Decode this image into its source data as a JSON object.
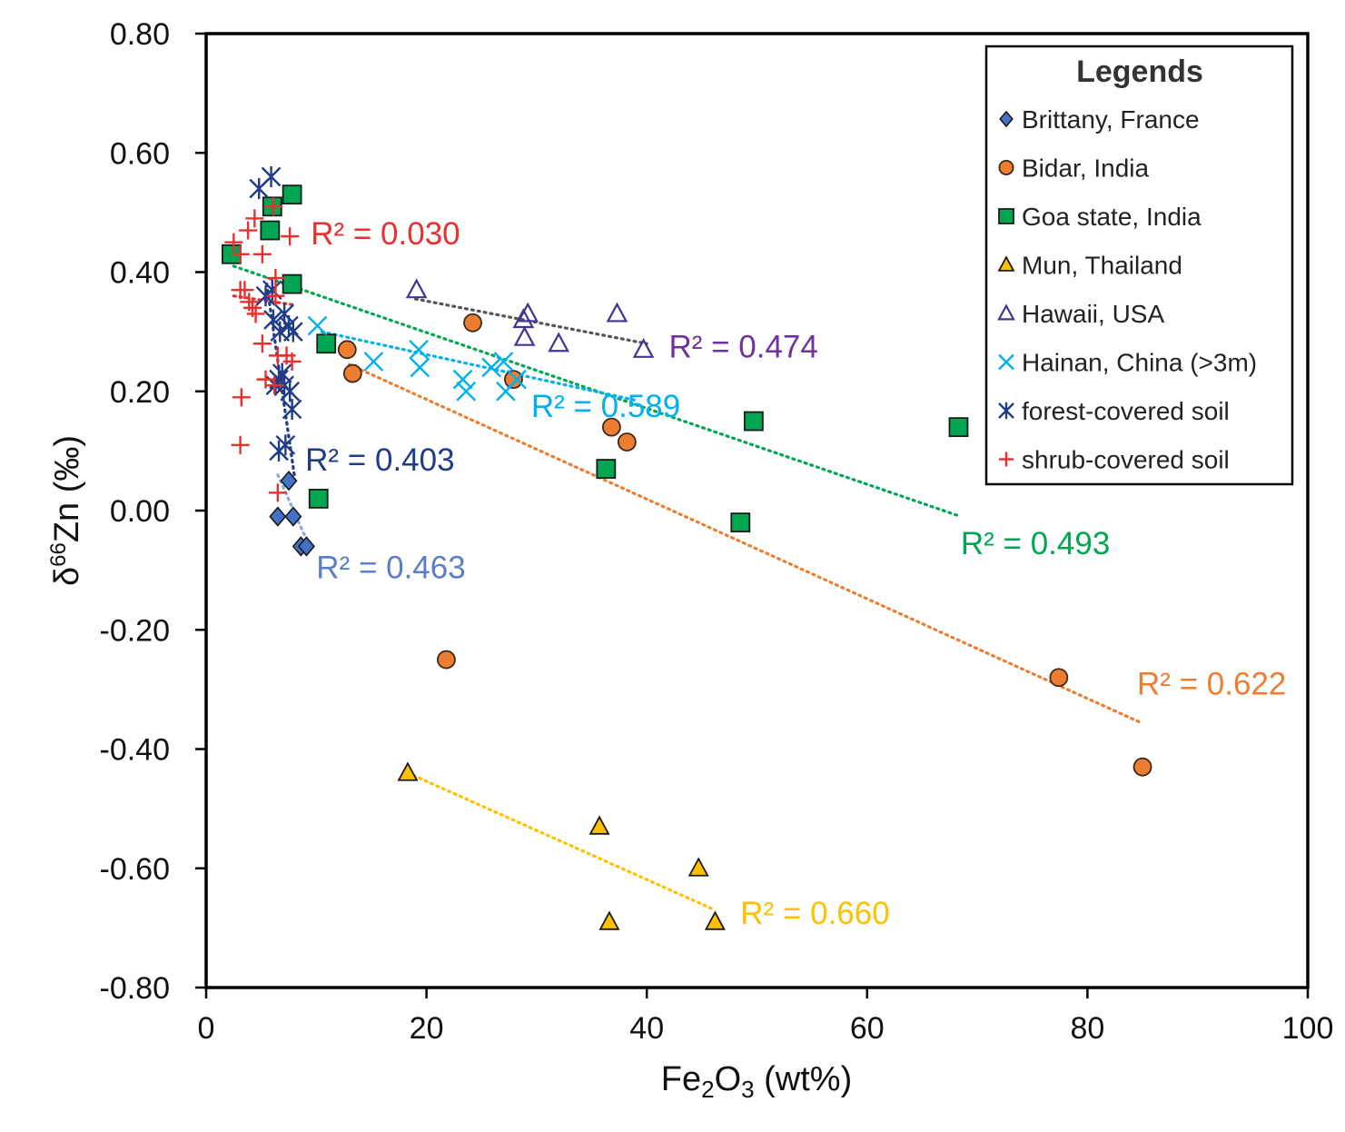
{
  "chart_data": {
    "type": "scatter",
    "xlabel_main": "Fe",
    "xlabel_sub1": "2",
    "xlabel_mid": "O",
    "xlabel_sub2": "3",
    "xlabel_tail": " (wt%)",
    "ylabel_pre": "δ",
    "ylabel_sup": "66",
    "ylabel_tail": "Zn (‰)",
    "xlim": [
      0,
      100
    ],
    "ylim": [
      -0.8,
      0.8
    ],
    "x_ticks": [
      0,
      20,
      40,
      60,
      80,
      100
    ],
    "x_tick_labels": [
      "0",
      "20",
      "40",
      "60",
      "80",
      "100"
    ],
    "y_ticks": [
      0.8,
      0.6,
      0.4,
      0.2,
      0.0,
      -0.2,
      -0.4,
      -0.6,
      -0.8
    ],
    "y_tick_labels": [
      "0.80",
      "0.60",
      "0.40",
      "0.20",
      "0.00",
      "-0.20",
      "-0.40",
      "-0.60",
      "-0.80"
    ],
    "legend_title": "Legends",
    "legend_position": "top-right",
    "series": [
      {
        "id": "brittany",
        "name": "Brittany, France",
        "marker": "diamond",
        "color": "#4472c4",
        "trend_color": "#8faadc",
        "points": [
          [
            7.5,
            0.05
          ],
          [
            6.5,
            -0.01
          ],
          [
            7.9,
            -0.01
          ],
          [
            8.6,
            -0.06
          ],
          [
            9.1,
            -0.06
          ]
        ],
        "trend": [
          [
            6.5,
            0.06
          ],
          [
            9.5,
            -0.065
          ]
        ],
        "r2": "R² = 0.463",
        "r2_anchor": [
          10,
          -0.095
        ],
        "r2_color": "#5b7fc7"
      },
      {
        "id": "bidar",
        "name": "Bidar, India",
        "marker": "circle",
        "color": "#ed7d31",
        "trend_color": "#ed7d31",
        "points": [
          [
            12.8,
            0.27
          ],
          [
            13.3,
            0.23
          ],
          [
            24.2,
            0.315
          ],
          [
            27.9,
            0.22
          ],
          [
            36.8,
            0.14
          ],
          [
            38.2,
            0.115
          ],
          [
            21.8,
            -0.25
          ],
          [
            77.4,
            -0.28
          ],
          [
            85.0,
            -0.43
          ]
        ],
        "trend": [
          [
            13,
            0.245
          ],
          [
            85,
            -0.357
          ]
        ],
        "r2": "R² = 0.622",
        "r2_anchor": [
          84.5,
          -0.29
        ],
        "r2_color": "#ed7d31"
      },
      {
        "id": "goa",
        "name": "Goa state, India",
        "marker": "square",
        "color": "#00a651",
        "trend_color": "#00a651",
        "points": [
          [
            2.3,
            0.43
          ],
          [
            6.0,
            0.51
          ],
          [
            5.8,
            0.47
          ],
          [
            7.8,
            0.53
          ],
          [
            7.8,
            0.38
          ],
          [
            10.9,
            0.28
          ],
          [
            10.2,
            0.02
          ],
          [
            36.3,
            0.07
          ],
          [
            49.7,
            0.15
          ],
          [
            48.5,
            -0.02
          ],
          [
            68.3,
            0.14
          ]
        ],
        "trend": [
          [
            2.5,
            0.41
          ],
          [
            68.5,
            -0.01
          ]
        ],
        "r2": "R² = 0.493",
        "r2_anchor": [
          68.5,
          -0.055
        ],
        "r2_color": "#00a651"
      },
      {
        "id": "mun",
        "name": "Mun, Thailand",
        "marker": "triangle",
        "color": "#ffc000",
        "trend_color": "#ffc000",
        "points": [
          [
            18.3,
            -0.44
          ],
          [
            35.7,
            -0.53
          ],
          [
            36.6,
            -0.69
          ],
          [
            44.7,
            -0.6
          ],
          [
            46.2,
            -0.69
          ]
        ],
        "trend": [
          [
            18.3,
            -0.44
          ],
          [
            46.2,
            -0.67
          ]
        ],
        "r2": "R² = 0.660",
        "r2_anchor": [
          48.5,
          -0.675
        ],
        "r2_color": "#ffc000"
      },
      {
        "id": "hawaii",
        "name": "Hawaii, USA",
        "marker": "triangle-open",
        "color": "#403794",
        "trend_color": "#555555",
        "points": [
          [
            19.1,
            0.37
          ],
          [
            28.8,
            0.32
          ],
          [
            29.2,
            0.33
          ],
          [
            28.9,
            0.29
          ],
          [
            32.0,
            0.28
          ],
          [
            37.3,
            0.33
          ],
          [
            39.7,
            0.27
          ]
        ],
        "trend": [
          [
            19,
            0.355
          ],
          [
            40,
            0.28
          ]
        ],
        "r2": "R² = 0.474",
        "r2_anchor": [
          42,
          0.275
        ],
        "r2_color": "#7030a0"
      },
      {
        "id": "hainan",
        "name": "Hainan, China (>3m)",
        "marker": "x",
        "color": "#00b0f0",
        "trend_color": "#00b0f0",
        "points": [
          [
            10.1,
            0.31
          ],
          [
            15.2,
            0.25
          ],
          [
            19.3,
            0.27
          ],
          [
            19.4,
            0.24
          ],
          [
            23.3,
            0.22
          ],
          [
            23.6,
            0.2
          ],
          [
            25.9,
            0.24
          ],
          [
            27.0,
            0.25
          ],
          [
            27.2,
            0.2
          ],
          [
            28.2,
            0.22
          ]
        ],
        "trend": [
          [
            10.5,
            0.3
          ],
          [
            39,
            0.185
          ]
        ],
        "r2": "R² = 0.589",
        "r2_anchor": [
          29.5,
          0.175
        ],
        "r2_color": "#00b0f0"
      },
      {
        "id": "forest",
        "name": "forest-covered soil",
        "marker": "asterisk",
        "color": "#1f3c88",
        "trend_color": "#1f3c88",
        "points": [
          [
            4.8,
            0.54
          ],
          [
            5.9,
            0.56
          ],
          [
            5.4,
            0.36
          ],
          [
            6.1,
            0.32
          ],
          [
            7.1,
            0.33
          ],
          [
            7.5,
            0.31
          ],
          [
            6.6,
            0.22
          ],
          [
            7.1,
            0.21
          ],
          [
            7.6,
            0.2
          ],
          [
            7.8,
            0.17
          ],
          [
            6.3,
            0.21
          ],
          [
            6.6,
            0.1
          ],
          [
            7.2,
            0.11
          ],
          [
            6.7,
            0.3
          ],
          [
            7.9,
            0.3
          ],
          [
            6.9,
            0.23
          ],
          [
            6.0,
            0.37
          ]
        ],
        "trend": [
          [
            5.5,
            0.38
          ],
          [
            8.0,
            0.06
          ]
        ],
        "r2": "R² = 0.403",
        "r2_anchor": [
          9,
          0.085
        ],
        "r2_color": "#1f3c88"
      },
      {
        "id": "shrub",
        "name": "shrub-covered soil",
        "marker": "plus",
        "color": "#e8312f",
        "trend_color": "#e8312f",
        "points": [
          [
            2.5,
            0.45
          ],
          [
            3.1,
            0.43
          ],
          [
            3.8,
            0.47
          ],
          [
            4.4,
            0.49
          ],
          [
            5.1,
            0.43
          ],
          [
            6.1,
            0.51
          ],
          [
            7.6,
            0.46
          ],
          [
            3.1,
            0.37
          ],
          [
            3.5,
            0.37
          ],
          [
            3.9,
            0.35
          ],
          [
            4.2,
            0.34
          ],
          [
            4.5,
            0.33
          ],
          [
            6.3,
            0.39
          ],
          [
            6.3,
            0.36
          ],
          [
            5.1,
            0.28
          ],
          [
            6.5,
            0.26
          ],
          [
            7.3,
            0.26
          ],
          [
            7.8,
            0.25
          ],
          [
            5.4,
            0.22
          ],
          [
            6.2,
            0.21
          ],
          [
            3.2,
            0.19
          ],
          [
            3.1,
            0.11
          ],
          [
            6.5,
            0.03
          ]
        ],
        "trend": [
          [
            2.5,
            0.36
          ],
          [
            8.0,
            0.345
          ]
        ],
        "r2": "R² = 0.030",
        "r2_anchor": [
          9.5,
          0.465
        ],
        "r2_color": "#e8312f"
      }
    ]
  }
}
